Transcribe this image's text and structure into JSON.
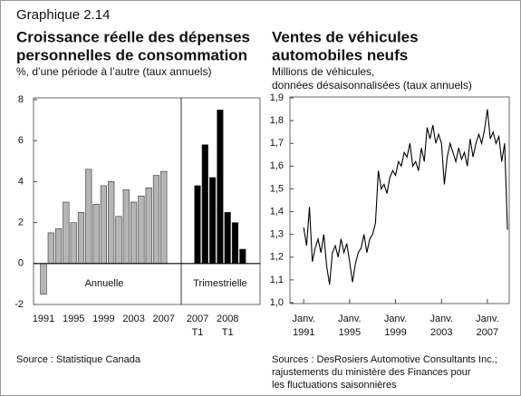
{
  "header": {
    "title": "Graphique 2.14"
  },
  "chart_data": [
    {
      "type": "bar",
      "title": [
        "Croissance réelle des dépenses",
        "personnelles de consommation"
      ],
      "subtitle": "%, d’une période à l’autre (taux annuels)",
      "categories": [
        "1991",
        null,
        null,
        null,
        "1995",
        null,
        null,
        null,
        "1999",
        null,
        null,
        null,
        "2003",
        null,
        null,
        null,
        "2007",
        "2007",
        null,
        null,
        null,
        "2008",
        null,
        null
      ],
      "category_sublabels": [
        null,
        null,
        null,
        null,
        null,
        null,
        null,
        null,
        null,
        null,
        null,
        null,
        null,
        null,
        null,
        null,
        null,
        "T1",
        null,
        null,
        null,
        "T1",
        null,
        null
      ],
      "series": [
        {
          "name": "Annuelle",
          "color": "#b5b5b5",
          "values": [
            -1.5,
            1.5,
            1.7,
            3.0,
            2.0,
            2.5,
            4.6,
            2.9,
            3.8,
            4.0,
            2.3,
            3.6,
            3.0,
            3.3,
            3.7,
            4.3,
            4.5,
            null,
            null,
            null,
            null,
            null,
            null,
            null
          ]
        },
        {
          "name": "Trimestrielle",
          "color": "#000000",
          "values": [
            null,
            null,
            null,
            null,
            null,
            null,
            null,
            null,
            null,
            null,
            null,
            null,
            null,
            null,
            null,
            null,
            null,
            3.8,
            5.8,
            4.2,
            7.5,
            2.5,
            2.0,
            0.7
          ]
        }
      ],
      "ylim": [
        -2,
        8
      ],
      "yticks": [
        -2,
        0,
        2,
        4,
        6,
        8
      ],
      "source": [
        "Source : Statistique Canada"
      ]
    },
    {
      "type": "line",
      "title": [
        "Ventes de véhicules",
        "automobiles neufs"
      ],
      "subtitle": [
        "Millions de véhicules,",
        "données désaisonnalisées (taux annuels)"
      ],
      "color": "#000000",
      "x": [
        1991.0,
        1991.25,
        1991.5,
        1991.75,
        1992.0,
        1992.25,
        1992.5,
        1992.75,
        1993.0,
        1993.25,
        1993.5,
        1993.75,
        1994.0,
        1994.25,
        1994.5,
        1994.75,
        1995.0,
        1995.25,
        1995.5,
        1995.75,
        1996.0,
        1996.25,
        1996.5,
        1996.75,
        1997.0,
        1997.25,
        1997.5,
        1997.75,
        1998.0,
        1998.25,
        1998.5,
        1998.75,
        1999.0,
        1999.25,
        1999.5,
        1999.75,
        2000.0,
        2000.25,
        2000.5,
        2000.75,
        2001.0,
        2001.25,
        2001.5,
        2001.75,
        2002.0,
        2002.25,
        2002.5,
        2002.75,
        2003.0,
        2003.25,
        2003.5,
        2003.75,
        2004.0,
        2004.25,
        2004.5,
        2004.75,
        2005.0,
        2005.25,
        2005.5,
        2005.75,
        2006.0,
        2006.25,
        2006.5,
        2006.75,
        2007.0,
        2007.25,
        2007.5,
        2007.75,
        2008.0,
        2008.25,
        2008.5,
        2008.75
      ],
      "values": [
        1.33,
        1.25,
        1.42,
        1.18,
        1.24,
        1.28,
        1.22,
        1.3,
        1.16,
        1.08,
        1.22,
        1.25,
        1.2,
        1.28,
        1.22,
        1.26,
        1.18,
        1.09,
        1.17,
        1.22,
        1.24,
        1.3,
        1.22,
        1.28,
        1.3,
        1.35,
        1.58,
        1.5,
        1.52,
        1.48,
        1.55,
        1.58,
        1.56,
        1.62,
        1.6,
        1.66,
        1.64,
        1.7,
        1.6,
        1.62,
        1.58,
        1.68,
        1.62,
        1.77,
        1.72,
        1.78,
        1.7,
        1.74,
        1.7,
        1.52,
        1.64,
        1.7,
        1.66,
        1.62,
        1.68,
        1.63,
        1.66,
        1.6,
        1.72,
        1.64,
        1.7,
        1.74,
        1.7,
        1.76,
        1.85,
        1.72,
        1.75,
        1.7,
        1.73,
        1.62,
        1.7,
        1.32
      ],
      "xlim": [
        1989.8,
        2008.9
      ],
      "xticks": [
        {
          "value": 1991,
          "label": "Janv."
        },
        {
          "value": 1995,
          "label": "Janv."
        },
        {
          "value": 1999,
          "label": "Janv."
        },
        {
          "value": 2003,
          "label": "Janv."
        },
        {
          "value": 2007,
          "label": "Janv."
        }
      ],
      "ylim": [
        1.0,
        1.9
      ],
      "yticks": [
        {
          "value": 1.0,
          "label": "1,0"
        },
        {
          "value": 1.1,
          "label": "1,1"
        },
        {
          "value": 1.2,
          "label": "1,2"
        },
        {
          "value": 1.3,
          "label": "1,3"
        },
        {
          "value": 1.4,
          "label": "1,4"
        },
        {
          "value": 1.5,
          "label": "1,5"
        },
        {
          "value": 1.6,
          "label": "1,6"
        },
        {
          "value": 1.7,
          "label": "1,7"
        },
        {
          "value": 1.8,
          "label": "1,8"
        },
        {
          "value": 1.9,
          "label": "1,9"
        }
      ],
      "source": [
        "Sources : DesRosiers Automotive Consultants Inc.;",
        "rajustements du ministère des Finances pour",
        "les fluctuations saisonnières"
      ]
    }
  ]
}
